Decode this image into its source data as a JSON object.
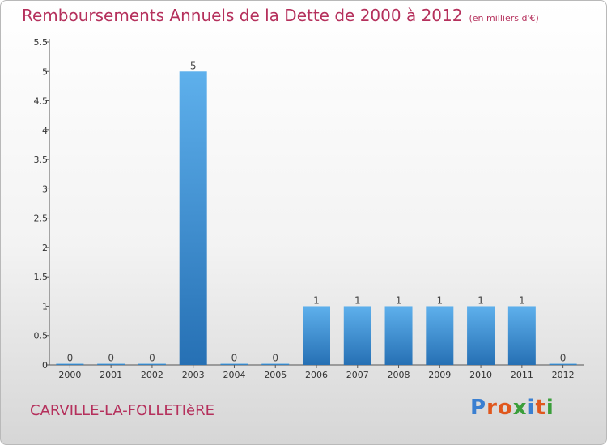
{
  "title": "Remboursements Annuels de la Dette de 2000 à 2012",
  "unit": "(en milliers d'€)",
  "commune": "CARVILLE-LA-FOLLETIèRE",
  "logo": {
    "text": "Proxiti",
    "colors": [
      "#3a7fd1",
      "#e0571d",
      "#e0571d",
      "#3a9e3a",
      "#3a7fd1",
      "#e0571d",
      "#3a9e3a"
    ]
  },
  "chart_data": {
    "type": "bar",
    "categories": [
      "2000",
      "2001",
      "2002",
      "2003",
      "2004",
      "2005",
      "2006",
      "2007",
      "2008",
      "2009",
      "2010",
      "2011",
      "2012"
    ],
    "values": [
      0,
      0,
      0,
      5,
      0,
      0,
      1,
      1,
      1,
      1,
      1,
      1,
      0
    ],
    "data_labels": [
      "0",
      "0",
      "0",
      "5",
      "0",
      "0",
      "1",
      "1",
      "1",
      "1",
      "1",
      "1",
      "0"
    ],
    "ylim": [
      0,
      5.5
    ],
    "y_ticks": [
      0,
      0.5,
      1,
      1.5,
      2,
      2.5,
      3,
      3.5,
      4,
      4.5,
      5,
      5.5
    ],
    "y_tick_labels": [
      "0",
      "0.5",
      "1",
      "1.5",
      "2",
      "2.5",
      "3",
      "3.5",
      "4",
      "4.5",
      "5",
      "5.5"
    ],
    "xlabel": "",
    "ylabel": "",
    "grid": false,
    "bar_color": "#3d94db"
  }
}
